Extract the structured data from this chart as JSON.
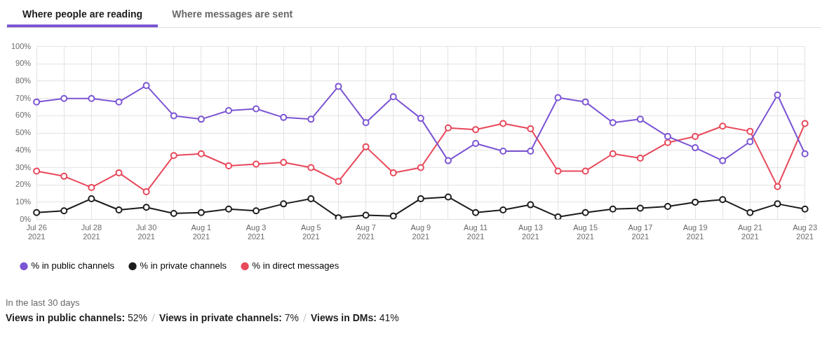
{
  "chart_data": {
    "type": "line",
    "title": "Where people are reading",
    "subtitle": "Where messages are sent",
    "categories": [
      "Jul 26\n2021",
      null,
      "Jul 28\n2021",
      null,
      "Jul 30\n2021",
      null,
      "Aug 1\n2021",
      null,
      "Aug 3\n2021",
      null,
      "Aug 5\n2021",
      null,
      "Aug 7\n2021",
      null,
      "Aug 9\n2021",
      null,
      "Aug 11\n2021",
      null,
      "Aug 13\n2021",
      null,
      "Aug 15\n2021",
      null,
      "Aug 17\n2021",
      null,
      "Aug 19\n2021",
      null,
      "Aug 21\n2021",
      null,
      "Aug 23\n2021"
    ],
    "series": [
      {
        "name": "% in public channels",
        "color": "#7b55d3",
        "values": [
          68,
          70,
          70,
          68,
          77.5,
          60,
          58,
          63,
          64,
          59,
          58,
          77,
          56,
          71,
          58.5,
          34,
          44,
          39.5,
          39.5,
          70.5,
          68,
          56,
          58,
          48,
          41.5,
          34,
          45,
          72,
          38
        ]
      },
      {
        "name": "% in private channels",
        "color": "#1d1c1d",
        "values": [
          4,
          5,
          12,
          5.5,
          7,
          3.5,
          4,
          6,
          5,
          9,
          12,
          1,
          2.5,
          2,
          12,
          13,
          4,
          5.5,
          8.5,
          1.5,
          4,
          6,
          6.5,
          7.5,
          10,
          11.5,
          4,
          9,
          6
        ]
      },
      {
        "name": "% in direct messages",
        "color": "#e8485a",
        "values": [
          28,
          25,
          18.5,
          27,
          16,
          37,
          38,
          31,
          32,
          33,
          30,
          22,
          42,
          27,
          30,
          53,
          52,
          55.5,
          52.5,
          28,
          28,
          38,
          35.5,
          44.5,
          48,
          54,
          51,
          19,
          55.5
        ]
      }
    ],
    "ylim": [
      0,
      100
    ],
    "yticks": [
      {
        "value": 0,
        "label": "0%"
      },
      {
        "value": 10,
        "label": "10%"
      },
      {
        "value": 20,
        "label": "20%"
      },
      {
        "value": 30,
        "label": "30%"
      },
      {
        "value": 40,
        "label": "40%"
      },
      {
        "value": 50,
        "label": "50%"
      },
      {
        "value": 60,
        "label": "60%"
      },
      {
        "value": 70,
        "label": "70%"
      },
      {
        "value": 80,
        "label": "80%"
      },
      {
        "value": 90,
        "label": "90%"
      },
      {
        "value": 100,
        "label": "100%"
      }
    ],
    "grid": true,
    "legend": "bottom left",
    "marker": "circle",
    "line_style": "solid",
    "annotations": [
      "In the last 30 days",
      "Views in public channels: 52%",
      "Views in private channels: 7%",
      "Views in DMs: 41%"
    ]
  }
}
